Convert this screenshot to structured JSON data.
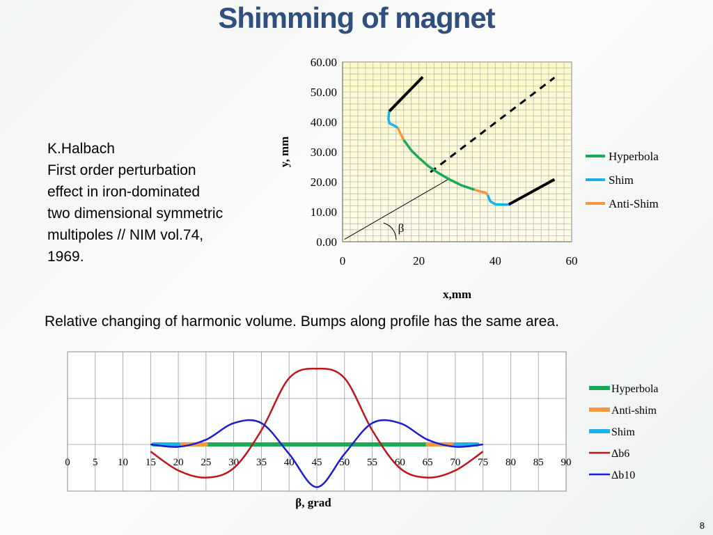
{
  "slide": {
    "title": "Shimming of magnet",
    "reference": [
      "K.Halbach",
      "First order perturbation",
      "effect in iron-dominated",
      "two dimensional symmetric",
      "multipoles // NIM vol.74,",
      "1969."
    ],
    "caption": "Relative changing of harmonic volume. Bumps along profile has the same area.",
    "page_number": "8"
  },
  "colors": {
    "hyperbola": "#1aaa55",
    "shim": "#1ab0e8",
    "anti_shim": "#f7963c",
    "db6": "#c0141c",
    "db10": "#1c1cd0",
    "plot_fill_top": "#fdf9c8"
  },
  "chart_data": [
    {
      "type": "line",
      "xlabel": "x,mm",
      "ylabel": "y, mm",
      "xlim": [
        0,
        60
      ],
      "ylim": [
        0,
        60
      ],
      "x_ticks": [
        "0",
        "20",
        "40",
        "60"
      ],
      "y_ticks": [
        "0.00",
        "10.00",
        "20.00",
        "30.00",
        "40.00",
        "50.00",
        "60.00"
      ],
      "grid": true,
      "legend_position": "right",
      "annotation": "β",
      "series": [
        {
          "name": "Hyperbola",
          "color": "#1aaa55",
          "points": [
            [
              16,
              34
            ],
            [
              18,
              30.5
            ],
            [
              20,
              28
            ],
            [
              22.5,
              25.2
            ],
            [
              25,
              23
            ],
            [
              28,
              20.8
            ],
            [
              31,
              18.9
            ],
            [
              34.5,
              17.4
            ]
          ]
        },
        {
          "name": "Shim",
          "color": "#1ab0e8",
          "segments": [
            [
              [
                12.2,
                43.5
              ],
              [
                12,
                41
              ],
              [
                12.3,
                39.5
              ],
              [
                13.5,
                38.8
              ],
              [
                14.5,
                38
              ]
            ],
            [
              [
                38,
                15.6
              ],
              [
                38.7,
                13.5
              ],
              [
                40,
                12.5
              ],
              [
                41.5,
                12.4
              ],
              [
                43.5,
                12.4
              ]
            ]
          ]
        },
        {
          "name": "Anti-Shim",
          "color": "#f7963c",
          "segments": [
            [
              [
                14.5,
                38
              ],
              [
                15.2,
                36
              ],
              [
                16,
                34
              ]
            ],
            [
              [
                34.5,
                17.4
              ],
              [
                36,
                16.8
              ],
              [
                37.4,
                16.4
              ],
              [
                38,
                15.6
              ]
            ]
          ]
        }
      ],
      "unlabeled_lines": [
        {
          "style": "solid-black",
          "points": [
            [
              12.2,
              43.5
            ],
            [
              21,
              55
            ]
          ]
        },
        {
          "style": "solid-black",
          "points": [
            [
              43.5,
              12.4
            ],
            [
              55.5,
              20.8
            ]
          ]
        },
        {
          "style": "dashed-black",
          "points": [
            [
              23,
              23.2
            ],
            [
              55.5,
              54.8
            ]
          ]
        },
        {
          "style": "thin-black",
          "points": [
            [
              0.5,
              0.8
            ],
            [
              27.5,
              20.7
            ]
          ]
        }
      ]
    },
    {
      "type": "line",
      "xlabel": "β,  grad",
      "ylabel": "",
      "xlim": [
        0,
        90
      ],
      "x": [
        15,
        20,
        25,
        30,
        35,
        40,
        45,
        50,
        55,
        60,
        65,
        70,
        75
      ],
      "x_ticks": [
        "0",
        "5",
        "10",
        "15",
        "20",
        "25",
        "30",
        "35",
        "40",
        "45",
        "50",
        "55",
        "60",
        "65",
        "70",
        "75",
        "80",
        "85",
        "90"
      ],
      "grid": true,
      "legend_position": "right",
      "series": [
        {
          "name": "Hyperbola",
          "color": "#1aaa55",
          "range": [
            25,
            65
          ],
          "level": 0
        },
        {
          "name": "Anti-shim",
          "color": "#f7963c",
          "ranges": [
            [
              20,
              25
            ],
            [
              65,
              70
            ]
          ],
          "level": 0
        },
        {
          "name": "Shim",
          "color": "#1ab0e8",
          "ranges": [
            [
              15.5,
              20
            ],
            [
              70,
              74
            ]
          ],
          "level": 0
        },
        {
          "name": "Δb6",
          "color": "#c0141c",
          "values": [
            -0.15,
            -0.55,
            -0.7,
            -0.5,
            0.3,
            1.4,
            1.6,
            1.4,
            0.3,
            -0.5,
            -0.7,
            -0.55,
            -0.15
          ]
        },
        {
          "name": "Δb10",
          "color": "#1c1cd0",
          "values": [
            0.0,
            -0.05,
            0.1,
            0.45,
            0.45,
            -0.2,
            -0.9,
            -0.2,
            0.45,
            0.45,
            0.1,
            -0.05,
            0.0
          ]
        }
      ]
    }
  ]
}
